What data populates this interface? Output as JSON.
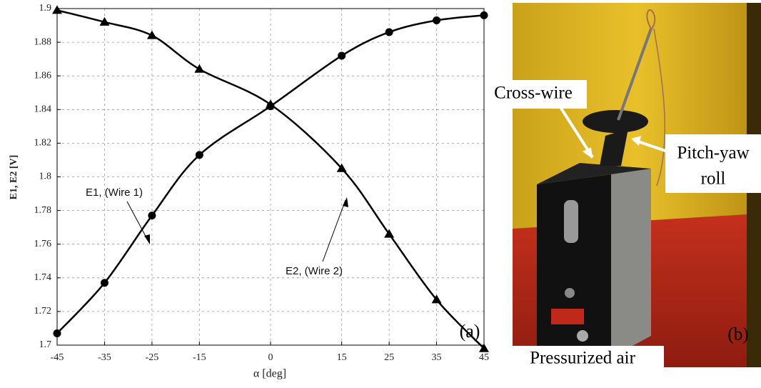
{
  "chart_data": {
    "type": "line",
    "x": [
      -45,
      -35,
      -25,
      -15,
      0,
      15,
      25,
      35,
      45
    ],
    "series": [
      {
        "marker": "circle",
        "color": "#000000",
        "values": [
          1.707,
          1.737,
          1.777,
          1.813,
          1.842,
          1.872,
          1.886,
          1.893,
          1.896
        ]
      },
      {
        "marker": "triangle",
        "color": "#000000",
        "values": [
          1.899,
          1.892,
          1.884,
          1.864,
          1.843,
          1.805,
          1.766,
          1.727,
          1.698
        ]
      }
    ],
    "xlim": [
      -45,
      45
    ],
    "xticks": [
      -45,
      -35,
      -25,
      -15,
      0,
      15,
      25,
      35,
      45
    ],
    "ylim": [
      1.7,
      1.9
    ],
    "yticks": [
      1.7,
      1.72,
      1.74,
      1.76,
      1.78,
      1.8,
      1.82,
      1.84,
      1.86,
      1.88,
      1.9
    ],
    "grid": true,
    "xlabel": "α [deg]",
    "ylabel": "E1, E2 [V]",
    "annotations": [
      "E1, (Wire 1)",
      "E2, (Wire 2)"
    ],
    "panel_label": "(a)"
  },
  "photo": {
    "labels": [
      "Cross-wire",
      "Pitch-yaw",
      "roll",
      "Pressurized air"
    ],
    "panel_label": "(b)"
  }
}
